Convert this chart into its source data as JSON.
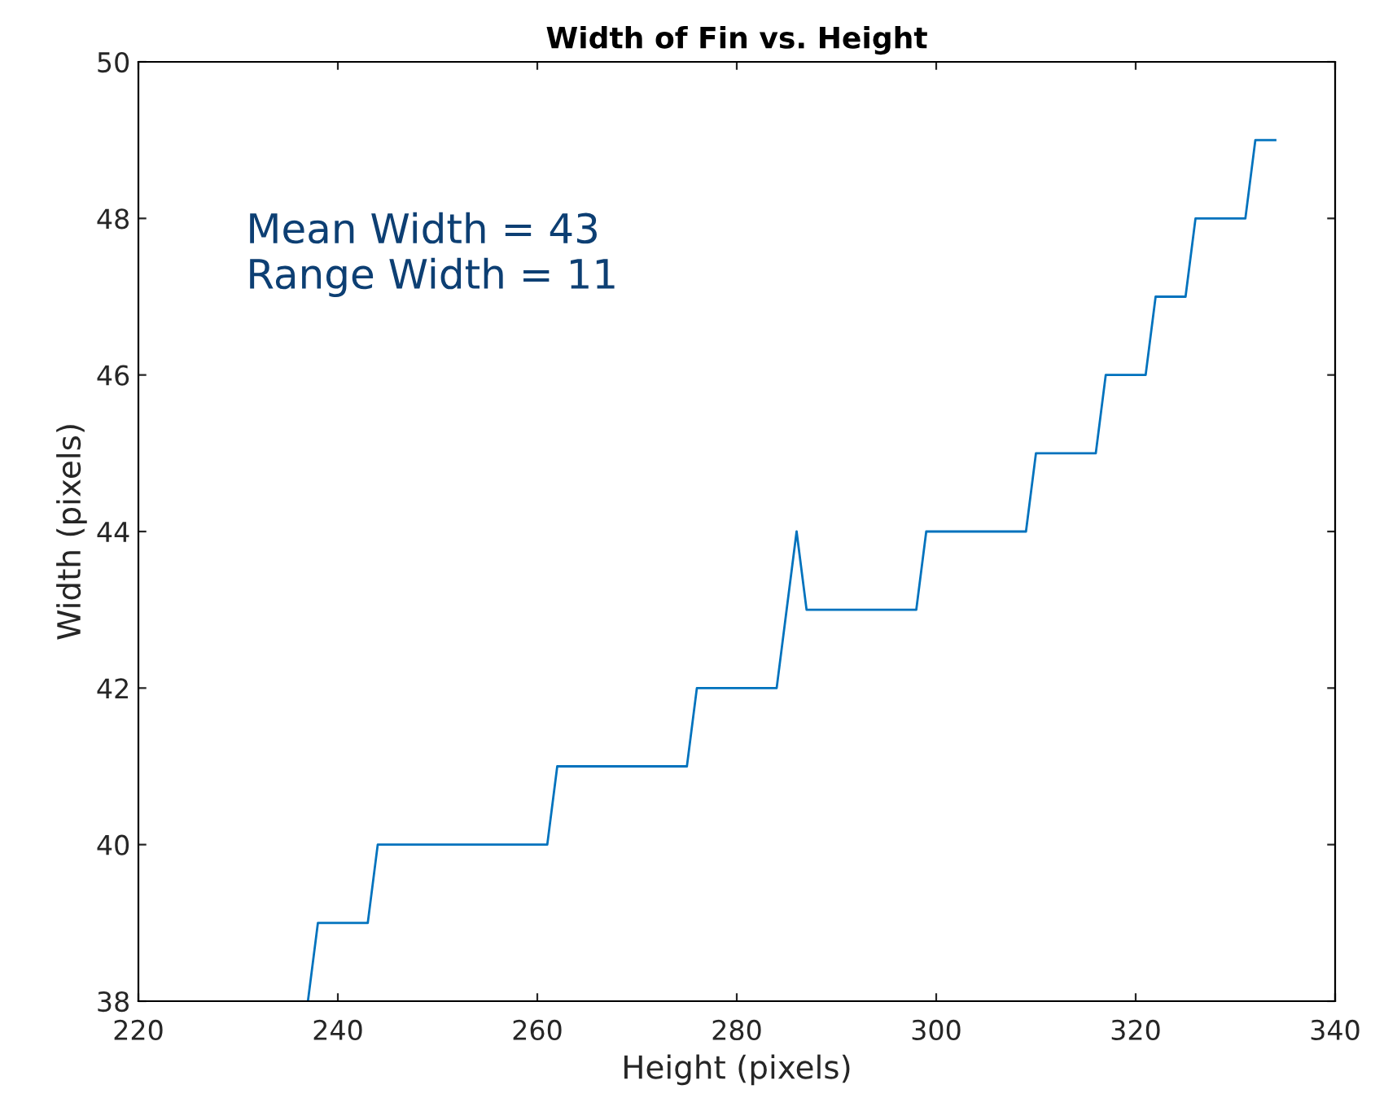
{
  "chart_data": {
    "type": "line",
    "title": "Width of Fin vs. Height",
    "xlabel": "Height (pixels)",
    "ylabel": "Width (pixels)",
    "annotations": [
      "Mean Width = 43\nRange Width = 11"
    ],
    "x": [
      237,
      238,
      243,
      244,
      261,
      262,
      275,
      276,
      284,
      286,
      287,
      298,
      299,
      309,
      310,
      316,
      317,
      321,
      322,
      325,
      326,
      331,
      332,
      334
    ],
    "series": [
      {
        "color": "#0072bd",
        "values": [
          38,
          39,
          39,
          40,
          40,
          41,
          41,
          42,
          42,
          44,
          43,
          43,
          44,
          44,
          45,
          45,
          46,
          46,
          47,
          47,
          48,
          48,
          49,
          49
        ]
      }
    ],
    "xlim": [
      220,
      340
    ],
    "ylim": [
      38,
      50
    ],
    "xticks": [
      220,
      240,
      260,
      280,
      300,
      320,
      340
    ],
    "yticks": [
      38,
      40,
      42,
      44,
      46,
      48,
      50
    ],
    "grid": false,
    "legend": false
  }
}
